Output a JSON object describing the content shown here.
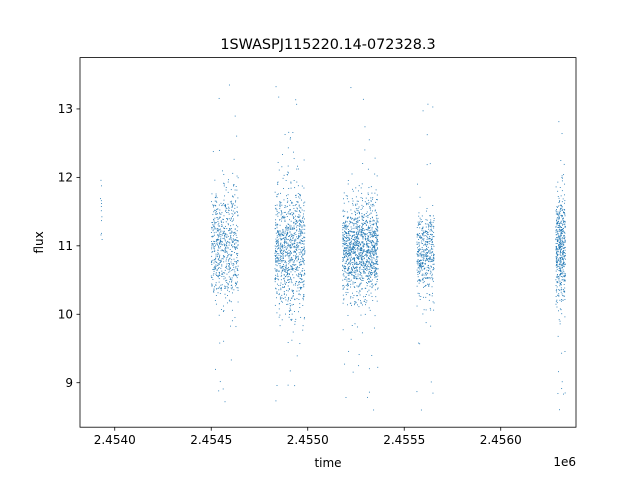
{
  "chart_data": {
    "type": "scatter",
    "title": "1SWASPJ115220.14-072328.3",
    "xlabel": "time",
    "ylabel": "flux",
    "x_offset_label": "1e6",
    "xlim": [
      2453820,
      2456390
    ],
    "ylim": [
      8.35,
      13.75
    ],
    "x_ticks": [
      {
        "value": 2454000,
        "label": "2.4540"
      },
      {
        "value": 2454500,
        "label": "2.4545"
      },
      {
        "value": 2455000,
        "label": "2.4550"
      },
      {
        "value": 2455500,
        "label": "2.4555"
      },
      {
        "value": 2456000,
        "label": "2.4560"
      }
    ],
    "y_ticks": [
      {
        "value": 9,
        "label": "9"
      },
      {
        "value": 10,
        "label": "10"
      },
      {
        "value": 11,
        "label": "11"
      },
      {
        "value": 12,
        "label": "12"
      },
      {
        "value": 13,
        "label": "13"
      }
    ],
    "grid": false,
    "marker_color": "#1f77b4",
    "clusters": [
      {
        "x_start": 2453925,
        "x_end": 2453935,
        "y_center": 11.6,
        "y_spread": 0.25,
        "count": 12
      },
      {
        "x_start": 2454500,
        "x_end": 2454640,
        "y_center": 11.0,
        "y_spread": 0.45,
        "count": 650
      },
      {
        "x_start": 2454830,
        "x_end": 2454985,
        "y_center": 10.95,
        "y_spread": 0.45,
        "count": 950
      },
      {
        "x_start": 2455180,
        "x_end": 2455365,
        "y_center": 10.95,
        "y_spread": 0.35,
        "count": 1300
      },
      {
        "x_start": 2455565,
        "x_end": 2455655,
        "y_center": 10.9,
        "y_spread": 0.3,
        "count": 450
      },
      {
        "x_start": 2456285,
        "x_end": 2456335,
        "y_center": 11.0,
        "y_spread": 0.4,
        "count": 500
      }
    ]
  }
}
